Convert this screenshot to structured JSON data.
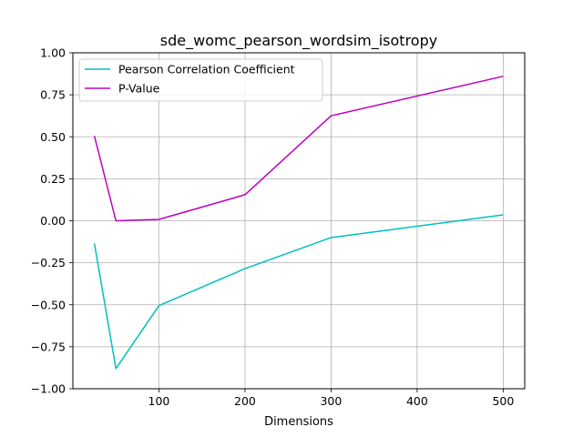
{
  "chart_data": {
    "type": "line",
    "title": "sde_womc_pearson_wordsim_isotropy",
    "xlabel": "Dimensions",
    "ylabel": "",
    "x": [
      25,
      50,
      100,
      200,
      300,
      500
    ],
    "xlim": [
      0,
      525
    ],
    "ylim": [
      -1.0,
      1.0
    ],
    "x_ticks": [
      100,
      200,
      300,
      400,
      500
    ],
    "x_tick_labels": [
      "100",
      "200",
      "300",
      "400",
      "500"
    ],
    "y_ticks": [
      -1.0,
      -0.75,
      -0.5,
      -0.25,
      0.0,
      0.25,
      0.5,
      0.75,
      1.0
    ],
    "y_tick_labels": [
      "−1.00",
      "−0.75",
      "−0.50",
      "−0.25",
      "0.00",
      "0.25",
      "0.50",
      "0.75",
      "1.00"
    ],
    "grid": true,
    "legend_position": "top-left",
    "series": [
      {
        "name": "Pearson Correlation Coefficient",
        "color": "#00bfbf",
        "values": [
          -0.135,
          -0.88,
          -0.505,
          -0.285,
          -0.1,
          0.035
        ]
      },
      {
        "name": "P-Value",
        "color": "#bf00bf",
        "values": [
          0.505,
          0.0,
          0.008,
          0.155,
          0.625,
          0.86
        ]
      }
    ]
  }
}
